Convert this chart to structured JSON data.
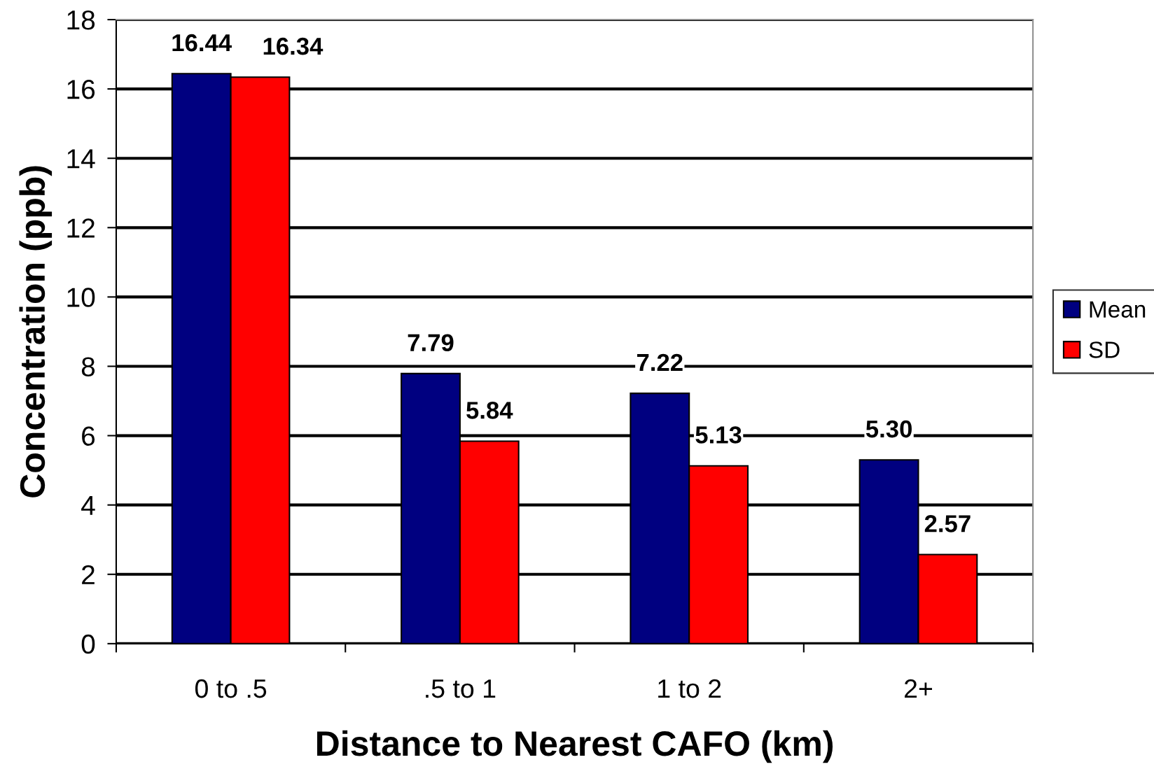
{
  "chart_data": {
    "type": "bar",
    "xlabel": "Distance to Nearest CAFO (km)",
    "ylabel": "Concentration (ppb)",
    "categories": [
      "0 to .5",
      ".5 to 1",
      "1 to 2",
      "2+"
    ],
    "series": [
      {
        "name": "Mean",
        "color": "#000080",
        "values": [
          16.44,
          7.79,
          7.22,
          5.3
        ],
        "value_labels": [
          "16.44",
          "7.79",
          "7.22",
          "5.30"
        ]
      },
      {
        "name": "SD",
        "color": "#ff0000",
        "values": [
          16.34,
          5.84,
          5.13,
          2.57
        ],
        "value_labels": [
          "16.34",
          "5.84",
          "5.13",
          "2.57"
        ]
      }
    ],
    "ylim": [
      0,
      18
    ],
    "yticks": [
      0,
      2,
      4,
      6,
      8,
      10,
      12,
      14,
      16,
      18
    ],
    "grid": "y",
    "legend": "right"
  }
}
